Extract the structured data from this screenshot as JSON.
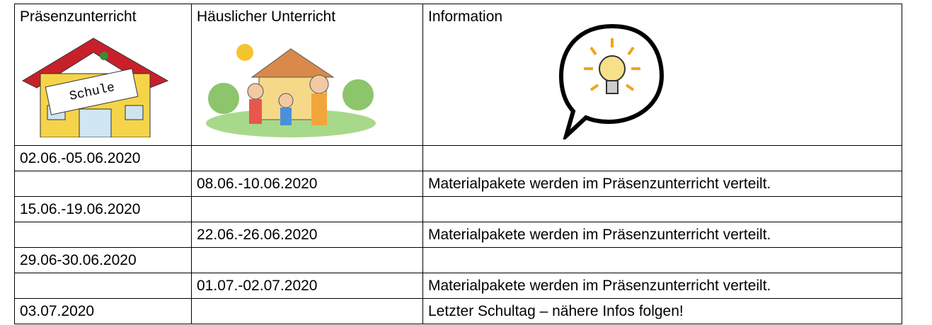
{
  "table": {
    "header": [
      "Präsenzunterricht",
      "Häuslicher Unterricht",
      "Information"
    ],
    "header_image_text": "Schule",
    "rows": [
      [
        "02.06.-05.06.2020",
        null,
        null
      ],
      [
        null,
        "08.06.-10.06.2020",
        "Materialpakete werden im Präsenzunterricht verteilt."
      ],
      [
        "15.06.-19.06.2020",
        null,
        null
      ],
      [
        null,
        "22.06.-26.06.2020",
        "Materialpakete werden im Präsenzunterricht verteilt."
      ],
      [
        "29.06-30.06.2020",
        null,
        null
      ],
      [
        null,
        "01.07.-02.07.2020",
        "Materialpakete werden im Präsenzunterricht verteilt."
      ],
      [
        "03.07.2020",
        null,
        "Letzter Schultag – nähere Infos folgen!"
      ]
    ]
  }
}
